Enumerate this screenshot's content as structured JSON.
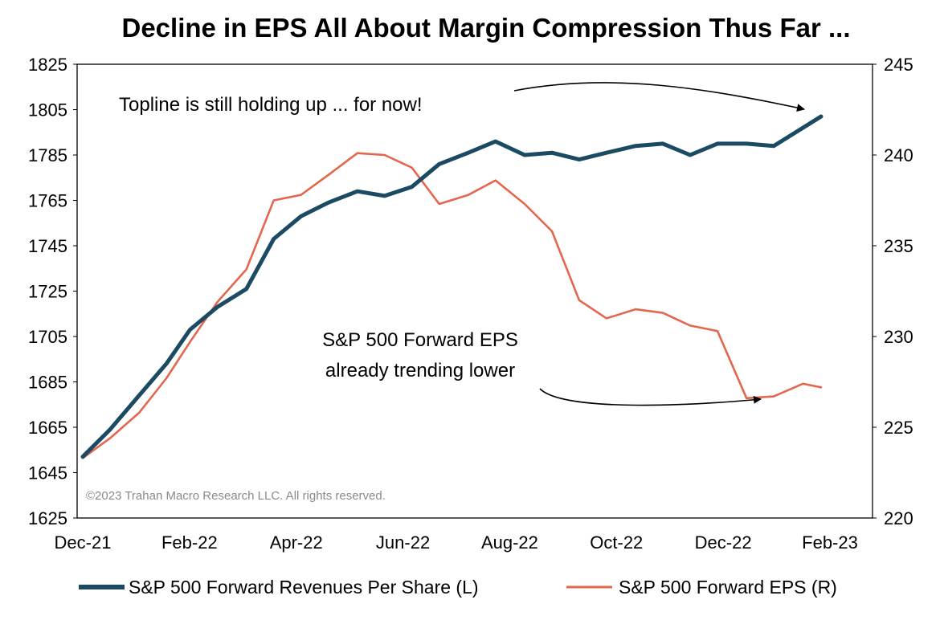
{
  "chart_data": {
    "type": "line",
    "title": "Decline in EPS All About Margin Compression Thus Far ...",
    "x_tick_labels": [
      "Dec-21",
      "Feb-22",
      "Apr-22",
      "Jun-22",
      "Aug-22",
      "Oct-22",
      "Dec-22",
      "Feb-23"
    ],
    "y_left": {
      "range": [
        1625,
        1825
      ],
      "ticks": [
        1625,
        1645,
        1665,
        1685,
        1705,
        1725,
        1745,
        1765,
        1785,
        1805,
        1825
      ]
    },
    "y_right": {
      "range": [
        220,
        245
      ],
      "ticks": [
        220,
        225,
        230,
        235,
        240,
        245
      ]
    },
    "grid": false,
    "legend_position": "bottom",
    "x": [
      "2021-12-31",
      "2022-01-15",
      "2022-01-31",
      "2022-02-15",
      "2022-02-28",
      "2022-03-15",
      "2022-03-31",
      "2022-04-15",
      "2022-04-30",
      "2022-05-15",
      "2022-05-31",
      "2022-06-15",
      "2022-06-30",
      "2022-07-15",
      "2022-07-31",
      "2022-08-15",
      "2022-08-31",
      "2022-09-15",
      "2022-09-30",
      "2022-10-15",
      "2022-10-31",
      "2022-11-15",
      "2022-11-30",
      "2022-12-15",
      "2022-12-31",
      "2023-01-15",
      "2023-01-31",
      "2023-02-10"
    ],
    "series": [
      {
        "name": "S&P 500 Forward Revenues Per Share (L)",
        "axis": "left",
        "color": "#1b4a63",
        "values": [
          1652,
          1664,
          1679,
          1693,
          1708,
          1718,
          1726,
          1748,
          1758,
          1764,
          1769,
          1767,
          1771,
          1781,
          1786,
          1791,
          1785,
          1786,
          1783,
          1786,
          1789,
          1790,
          1785,
          1790,
          1790,
          1789,
          1797,
          1802
        ]
      },
      {
        "name": "S&P 500 Forward EPS (R)",
        "axis": "right",
        "color": "#e3674f",
        "values": [
          223.3,
          224.4,
          225.8,
          227.7,
          229.7,
          231.9,
          233.7,
          237.5,
          237.8,
          238.9,
          240.1,
          240.0,
          239.3,
          237.3,
          237.8,
          238.6,
          237.3,
          235.8,
          232.0,
          231.0,
          231.5,
          231.3,
          230.6,
          230.3,
          226.6,
          226.7,
          227.4,
          227.2
        ]
      }
    ],
    "annotations": {
      "topline": "Topline is still holding up ... for now!",
      "eps_line1": "S&P 500 Forward EPS",
      "eps_line2": "already trending lower"
    },
    "copyright": "©2023 Trahan Macro Research LLC. All rights reserved."
  }
}
